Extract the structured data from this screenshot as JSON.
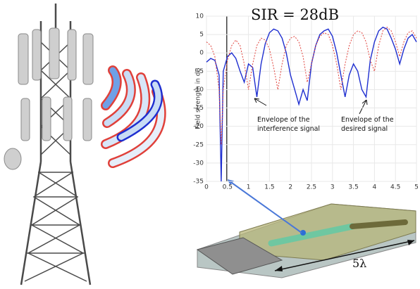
{
  "chart_data": {
    "type": "line",
    "ylabel": "Field strength in dB",
    "x": [
      0,
      0.1,
      0.2,
      0.3,
      0.35,
      0.4,
      0.5,
      0.6,
      0.7,
      0.8,
      0.9,
      1.0,
      1.1,
      1.2,
      1.3,
      1.4,
      1.5,
      1.6,
      1.7,
      1.8,
      1.9,
      2.0,
      2.1,
      2.2,
      2.3,
      2.4,
      2.5,
      2.6,
      2.7,
      2.8,
      2.9,
      3.0,
      3.1,
      3.2,
      3.3,
      3.4,
      3.5,
      3.6,
      3.7,
      3.8,
      3.9,
      4.0,
      4.1,
      4.2,
      4.3,
      4.4,
      4.5,
      4.6,
      4.7,
      4.8,
      4.9,
      5.0
    ],
    "series": [
      {
        "color": "#1f2fd0",
        "dash": false,
        "values": [
          -2.5,
          -1.5,
          -2,
          -6,
          -35,
          -5,
          -1,
          0,
          -1.5,
          -5,
          -8,
          -3,
          -4,
          -12,
          -3,
          2.5,
          5.5,
          6.5,
          6,
          4,
          0,
          -6,
          -10,
          -14,
          -10,
          -13,
          -3,
          2,
          5,
          6,
          6.5,
          4.5,
          0,
          -6,
          -12,
          -6,
          -3,
          -5,
          -10,
          -12,
          -2,
          3,
          6,
          7,
          6.5,
          4,
          1,
          -3,
          1,
          4,
          5,
          3
        ]
      },
      {
        "color": "#e0403a",
        "dash": true,
        "values": [
          3,
          2,
          -1,
          -10,
          -25,
          -10,
          -2,
          2,
          3.5,
          2,
          -3,
          -10,
          -3,
          2,
          4,
          3.5,
          1,
          -4,
          -10,
          -3,
          2,
          4,
          4.5,
          3,
          -1,
          -8,
          -3,
          2,
          4.5,
          5.5,
          5,
          2,
          -3,
          -10,
          -3,
          2,
          5,
          6,
          5.5,
          3,
          -2,
          -5,
          2,
          6,
          7,
          6,
          3,
          -1,
          3,
          5.5,
          6,
          4
        ]
      }
    ],
    "xlim": [
      0,
      5
    ],
    "xticks": [
      0,
      0.5,
      1,
      1.5,
      2,
      2.5,
      3,
      3.5,
      4,
      4.5,
      5
    ],
    "ylim": [
      -35,
      10
    ],
    "yticks": [
      -35,
      -30,
      -25,
      -20,
      -15,
      -10,
      -5,
      0,
      5,
      10
    ],
    "annotations": [
      "SIR = 28dB",
      "Envelope of the\ninterference signal",
      "Envelope of the\ndesired signal",
      "5λ"
    ]
  }
}
